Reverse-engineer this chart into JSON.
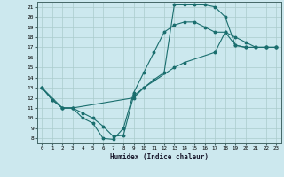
{
  "xlabel": "Humidex (Indice chaleur)",
  "bg_color": "#cce8ee",
  "grid_color": "#aacccc",
  "line_color": "#1a6e6e",
  "xlim": [
    -0.5,
    23.5
  ],
  "ylim": [
    7.5,
    21.5
  ],
  "xticks": [
    0,
    1,
    2,
    3,
    4,
    5,
    6,
    7,
    8,
    9,
    10,
    11,
    12,
    13,
    14,
    15,
    16,
    17,
    18,
    19,
    20,
    21,
    22,
    23
  ],
  "yticks": [
    8,
    9,
    10,
    11,
    12,
    13,
    14,
    15,
    16,
    17,
    18,
    19,
    20,
    21
  ],
  "curve1_x": [
    0,
    1,
    2,
    3,
    4,
    5,
    6,
    7,
    8,
    9,
    10,
    11,
    12,
    13,
    14,
    15,
    16,
    17,
    18,
    19,
    20,
    21,
    22,
    23
  ],
  "curve1_y": [
    13,
    11.8,
    11,
    11,
    10,
    9.5,
    8,
    7.9,
    9.0,
    12.5,
    14.5,
    16.5,
    18.5,
    19.2,
    19.5,
    19.5,
    19,
    18.5,
    18.5,
    18,
    17.5,
    17,
    17,
    17
  ],
  "curve2_x": [
    0,
    1,
    2,
    3,
    4,
    5,
    6,
    7,
    8,
    9,
    10,
    11,
    12,
    13,
    14,
    15,
    16,
    17,
    18,
    19,
    20,
    21,
    22,
    23
  ],
  "curve2_y": [
    13,
    11.8,
    11,
    11,
    10.5,
    10,
    9.2,
    8.2,
    8.3,
    12.2,
    13.0,
    13.8,
    14.5,
    21.2,
    21.2,
    21.2,
    21.2,
    21.0,
    20.0,
    17.2,
    17,
    17,
    17,
    17
  ],
  "curve3_x": [
    0,
    2,
    3,
    9,
    10,
    13,
    14,
    17,
    18,
    19,
    20,
    21,
    22,
    23
  ],
  "curve3_y": [
    13,
    11,
    11,
    12,
    13,
    15,
    15.5,
    16.5,
    18.5,
    17.2,
    17,
    17,
    17,
    17
  ]
}
